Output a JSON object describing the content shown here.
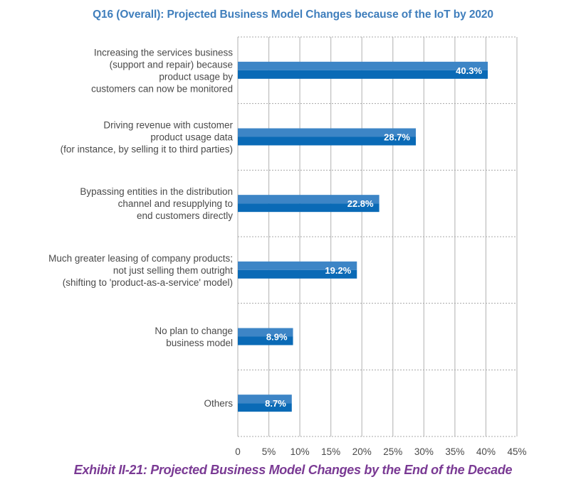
{
  "chart_data": {
    "type": "bar",
    "orientation": "horizontal",
    "title": "Q16 (Overall): Projected Business Model Changes because of the IoT by 2020",
    "caption": "Exhibit II-21: Projected Business Model Changes by the End of the Decade",
    "xlabel": "",
    "ylabel": "",
    "xlim": [
      0,
      45
    ],
    "x_ticks": [
      0,
      5,
      10,
      15,
      20,
      25,
      30,
      35,
      40,
      45
    ],
    "x_tick_labels": [
      "0",
      "5%",
      "10%",
      "15%",
      "20%",
      "25%",
      "30%",
      "35%",
      "40%",
      "45%"
    ],
    "grid": true,
    "legend": "none",
    "categories": [
      [
        "Increasing the services business",
        "(support and repair) because",
        "product usage by",
        "customers can now be monitored"
      ],
      [
        "Driving revenue with customer",
        "product usage data",
        "(for instance, by selling it to third parties)"
      ],
      [
        "Bypassing entities in the distribution",
        "channel and  resupplying to",
        "end customers directly"
      ],
      [
        "Much greater leasing of company products;",
        "not just selling them outright",
        "(shifting to 'product-as-a-service' model)"
      ],
      [
        "No plan to change",
        "business model"
      ],
      [
        "Others"
      ]
    ],
    "values": [
      40.3,
      28.7,
      22.8,
      19.2,
      8.9,
      8.7
    ],
    "value_labels": [
      "40.3%",
      "28.7%",
      "22.8%",
      "19.2%",
      "8.9%",
      "8.7%"
    ],
    "colors": {
      "bar_top": "#3d85c6",
      "bar_bottom": "#0a6ab6",
      "title": "#3f7ebc",
      "caption": "#7a3a94",
      "grid": "#bdbdbd",
      "text": "#4a4a4a"
    }
  }
}
